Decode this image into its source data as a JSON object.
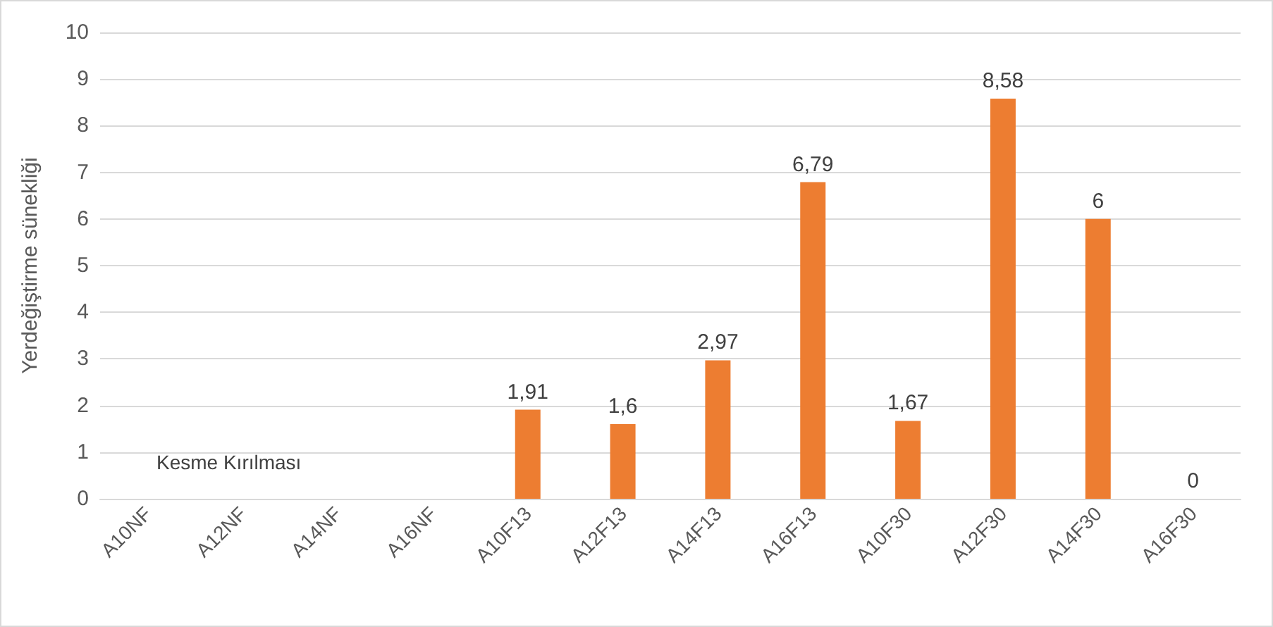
{
  "chart_data": {
    "type": "bar",
    "ylabel": "Yerdeğiştirme sünekliği",
    "categories": [
      "A10NF",
      "A12NF",
      "A14NF",
      "A16NF",
      "A10F13",
      "A12F13",
      "A14F13",
      "A16F13",
      "A10F30",
      "A12F30",
      "A14F30",
      "A16F30"
    ],
    "values": [
      null,
      null,
      null,
      null,
      1.91,
      1.6,
      2.97,
      6.79,
      1.67,
      8.58,
      6,
      0
    ],
    "value_labels": [
      null,
      null,
      null,
      null,
      "1,91",
      "1,6",
      "2,97",
      "6,79",
      "1,67",
      "8,58",
      "6",
      "0"
    ],
    "color": "#ed7d31",
    "ylim": [
      0,
      10
    ],
    "yticks": [
      0,
      1,
      2,
      3,
      4,
      5,
      6,
      7,
      8,
      9,
      10
    ],
    "grid": "y",
    "annotations": [
      "Kesme Kırılması"
    ]
  }
}
